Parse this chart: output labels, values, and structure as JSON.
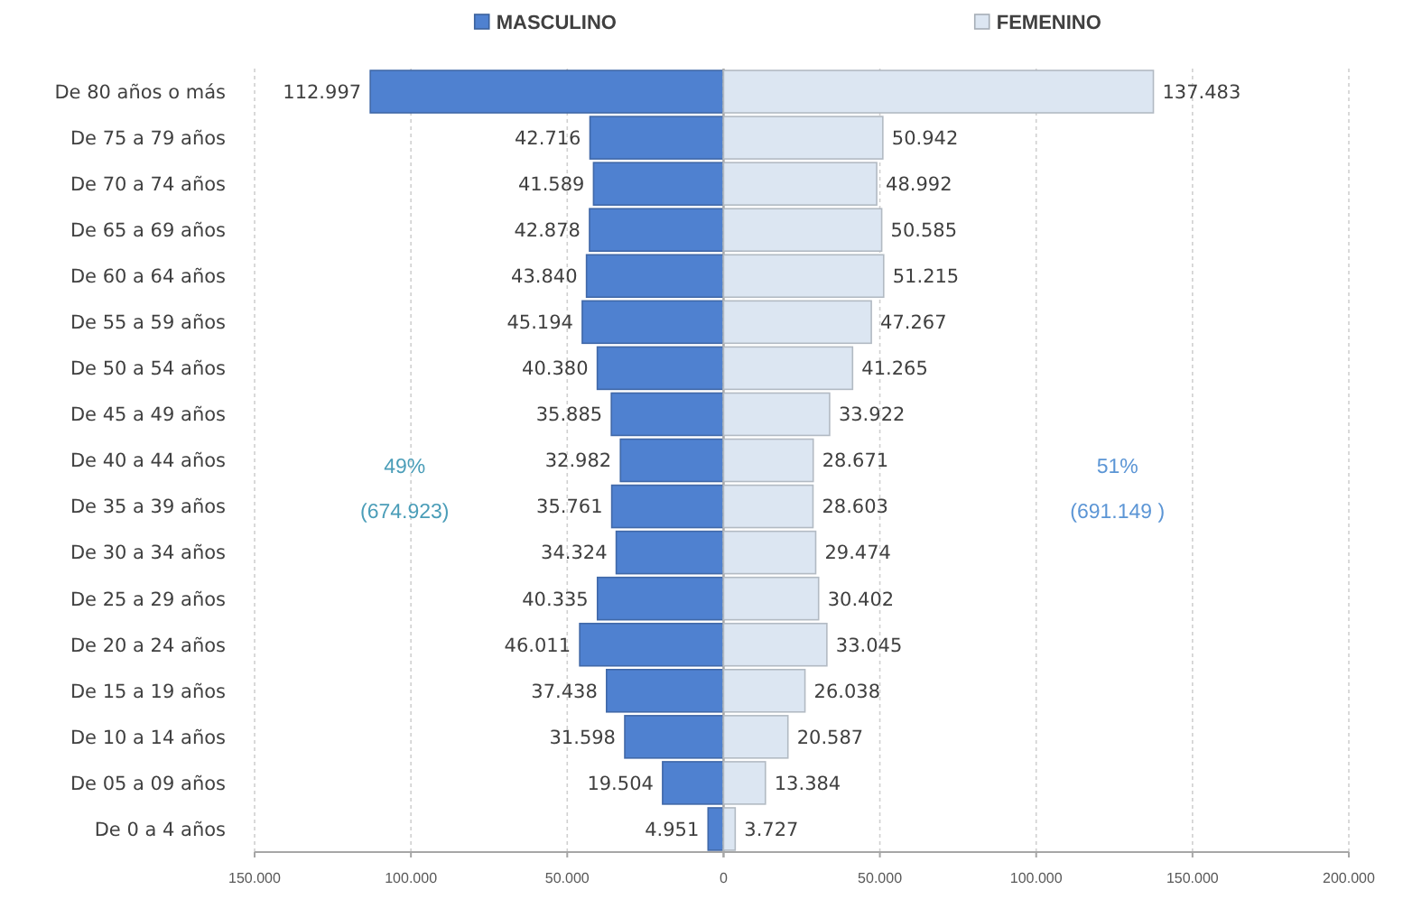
{
  "chart_data": [
    {
      "type": "bar",
      "orientation": "horizontal",
      "categories": [
        "De 80 años o más",
        "De 75 a 79 años",
        "De 70 a 74 años",
        "De 65 a 69 años",
        "De 60 a 64 años",
        "De 55 a 59 años",
        "De 50 a 54 años",
        "De 45 a 49 años",
        "De 40 a 44 años",
        "De 35 a 39 años",
        "De 30 a 34 años",
        "De 25 a 29 años",
        "De 20 a 24 años",
        "De 15 a 19 años",
        "De 10 a 14 años",
        "De 05 a 09 años",
        "De 0 a 4 años"
      ],
      "series": [
        {
          "name": "MASCULINO",
          "color": "#4f81d0",
          "values": [
            112997,
            42716,
            41589,
            42878,
            43840,
            45194,
            40380,
            35885,
            32982,
            35761,
            34324,
            40335,
            46011,
            37438,
            31598,
            19504,
            4951
          ],
          "value_labels": [
            "112.997",
            "42.716",
            "41.589",
            "42.878",
            "43.840",
            "45.194",
            "40.380",
            "35.885",
            "32.982",
            "35.761",
            "34.324",
            "40.335",
            "46.011",
            "37.438",
            "31.598",
            "19.504",
            "4.951"
          ]
        }
      ],
      "xlim": [
        150000,
        0
      ],
      "xticks": [
        {
          "value": 150000,
          "label": "150.000"
        },
        {
          "value": 100000,
          "label": "100.000"
        },
        {
          "value": 50000,
          "label": "50.000"
        },
        0
      ],
      "annotations": [
        "49%\n(674.923)"
      ],
      "grid": "x",
      "legend": "top"
    },
    {
      "type": "bar",
      "orientation": "horizontal",
      "categories": [
        null,
        null,
        null,
        null,
        null,
        null,
        null,
        null,
        null,
        null,
        null,
        null,
        null,
        null,
        null,
        null,
        null
      ],
      "series": [
        {
          "name": "FEMENINO",
          "color": "#dce6f2",
          "values": [
            137483,
            50942,
            48992,
            50585,
            51215,
            47267,
            41265,
            33922,
            28671,
            28603,
            29474,
            30402,
            33045,
            26038,
            20587,
            13384,
            3727
          ],
          "value_labels": [
            "137.483",
            "50.942",
            "48.992",
            "50.585",
            "51.215",
            "47.267",
            "41.265",
            "33.922",
            "28.671",
            "28.603",
            "29.474",
            "30.402",
            "33.045",
            "26.038",
            "20.587",
            "13.384",
            "3.727"
          ]
        }
      ],
      "xlim": [
        0,
        200000
      ],
      "xticks": [
        {
          "value": 0,
          "label": null
        },
        {
          "value": 50000,
          "label": "50.000"
        },
        {
          "value": 100000,
          "label": "100.000"
        },
        {
          "value": 150000,
          "label": "150.000"
        },
        {
          "value": 200000,
          "label": "200.000"
        }
      ],
      "annotations": [
        "51%\n(691.149 )"
      ],
      "grid": "x",
      "legend": "top"
    }
  ]
}
